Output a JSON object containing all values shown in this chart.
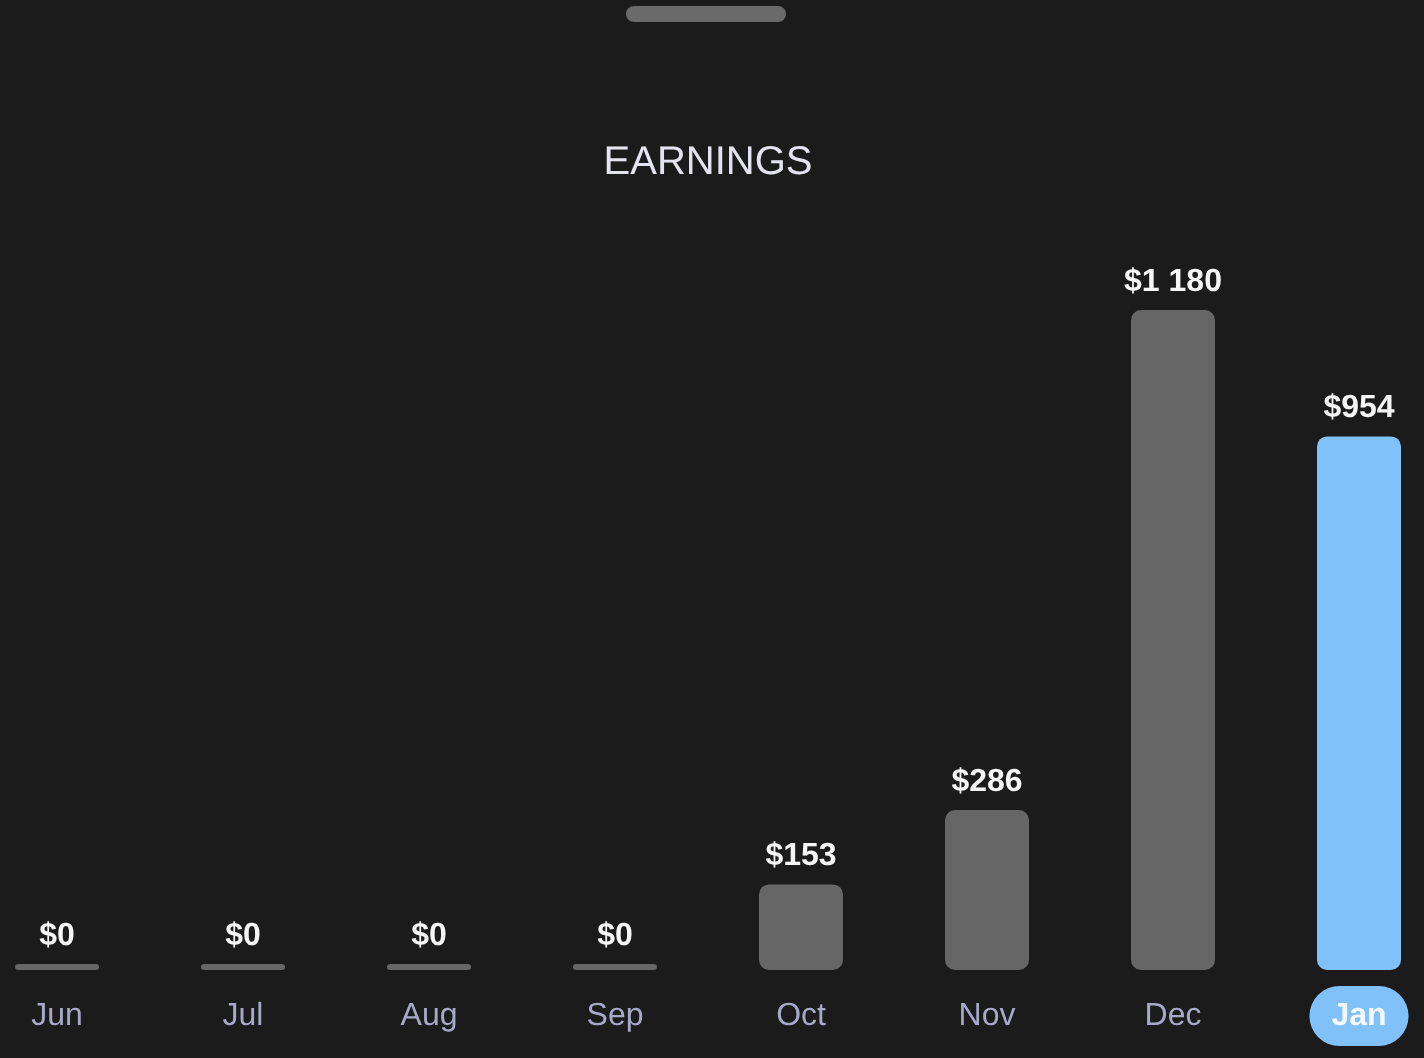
{
  "chart_data": {
    "type": "bar",
    "title": "EARNINGS",
    "categories": [
      "Jun",
      "Jul",
      "Aug",
      "Sep",
      "Oct",
      "Nov",
      "Dec",
      "Jan"
    ],
    "values": [
      0,
      0,
      0,
      0,
      153,
      286,
      1180,
      954
    ],
    "colors": [
      "#666666",
      "#666666",
      "#666666",
      "#666666",
      "#666666",
      "#666666",
      "#666666",
      "#80c1fa"
    ],
    "value_labels": [
      "$0",
      "$0",
      "$0",
      "$0",
      "$153",
      "$286",
      "$1 180",
      "$954"
    ]
  }
}
